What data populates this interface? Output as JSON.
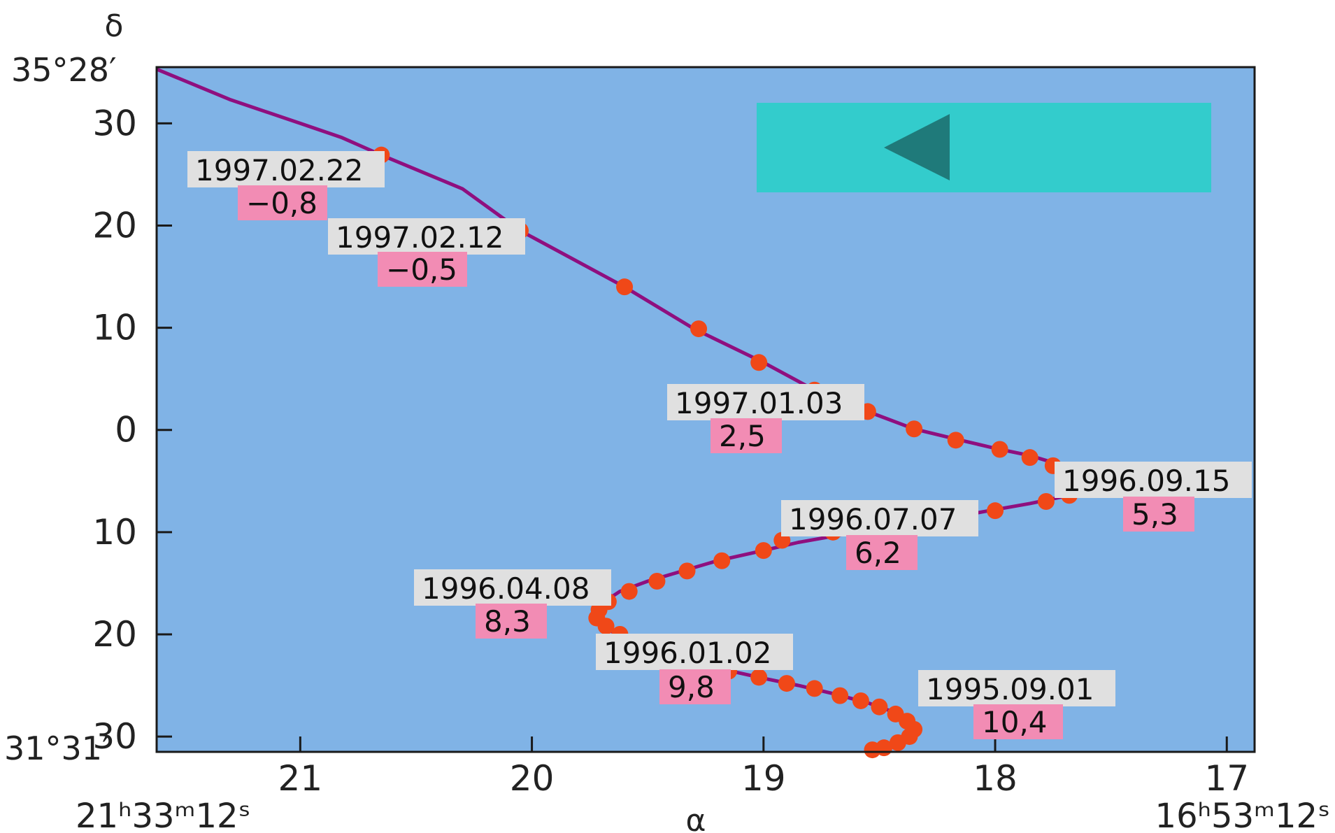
{
  "chart_data": {
    "type": "line",
    "xlabel": "α",
    "ylabel": "δ",
    "x_reversed": true,
    "xlim": [
      21.62,
      16.88
    ],
    "ylim": [
      -31.5,
      35.5
    ],
    "x_ticks": [
      {
        "value": 21,
        "label": "21"
      },
      {
        "value": 20,
        "label": "20"
      },
      {
        "value": 19,
        "label": "19"
      },
      {
        "value": 18,
        "label": "18"
      },
      {
        "value": 17,
        "label": "17"
      }
    ],
    "x_range_labels": {
      "left": "21ʰ33ᵐ12ˢ",
      "right": "16ʰ53ᵐ12ˢ"
    },
    "y_ticks": [
      {
        "value": 30,
        "label": "30"
      },
      {
        "value": 20,
        "label": "20"
      },
      {
        "value": 10,
        "label": "10"
      },
      {
        "value": 0,
        "label": "0"
      },
      {
        "value": -10,
        "label": "10"
      },
      {
        "value": -20,
        "label": "20"
      },
      {
        "value": -30,
        "label": "30"
      }
    ],
    "y_range_labels": {
      "top": "35°28′",
      "bottom": "31°31′"
    },
    "path": [
      [
        21.62,
        35.3
      ],
      [
        21.3,
        32.3
      ],
      [
        21.0,
        30.0
      ],
      [
        20.82,
        28.6
      ],
      [
        20.65,
        26.9
      ],
      [
        20.3,
        23.6
      ],
      [
        20.05,
        19.5
      ],
      [
        19.6,
        14.0
      ],
      [
        19.3,
        9.9
      ],
      [
        19.0,
        6.6
      ],
      [
        18.78,
        3.9
      ],
      [
        18.55,
        1.8
      ],
      [
        18.35,
        0.1
      ],
      [
        18.15,
        -1.0
      ],
      [
        18.0,
        -1.8
      ],
      [
        17.85,
        -2.5
      ],
      [
        17.72,
        -3.4
      ],
      [
        17.62,
        -4.1
      ],
      [
        17.55,
        -5.0
      ],
      [
        17.58,
        -5.8
      ],
      [
        17.7,
        -6.5
      ],
      [
        17.85,
        -7.2
      ],
      [
        18.05,
        -8.0
      ],
      [
        18.35,
        -9.2
      ],
      [
        18.6,
        -10.0
      ],
      [
        18.85,
        -11.0
      ],
      [
        19.0,
        -11.8
      ],
      [
        19.2,
        -12.8
      ],
      [
        19.35,
        -13.8
      ],
      [
        19.5,
        -14.8
      ],
      [
        19.62,
        -15.8
      ],
      [
        19.7,
        -17.0
      ],
      [
        19.72,
        -18.3
      ],
      [
        19.68,
        -19.3
      ],
      [
        19.62,
        -20.3
      ],
      [
        19.5,
        -21.5
      ],
      [
        19.35,
        -22.5
      ],
      [
        19.2,
        -23.3
      ],
      [
        19.0,
        -24.3
      ],
      [
        18.85,
        -25.0
      ],
      [
        18.7,
        -25.8
      ],
      [
        18.55,
        -26.7
      ],
      [
        18.45,
        -27.5
      ],
      [
        18.37,
        -28.5
      ],
      [
        18.33,
        -29.4
      ],
      [
        18.37,
        -30.3
      ],
      [
        18.45,
        -31.0
      ],
      [
        18.52,
        -31.3
      ]
    ],
    "points": [
      [
        20.65,
        26.9
      ],
      [
        20.05,
        19.5
      ],
      [
        19.6,
        14.0
      ],
      [
        19.28,
        9.9
      ],
      [
        19.02,
        6.6
      ],
      [
        18.78,
        3.9
      ],
      [
        18.55,
        1.8
      ],
      [
        18.35,
        0.1
      ],
      [
        18.17,
        -1.0
      ],
      [
        17.98,
        -1.9
      ],
      [
        17.85,
        -2.7
      ],
      [
        17.75,
        -3.5
      ],
      [
        17.65,
        -4.0
      ],
      [
        17.6,
        -4.8
      ],
      [
        17.56,
        -5.2
      ],
      [
        17.62,
        -5.6
      ],
      [
        17.68,
        -6.4
      ],
      [
        17.78,
        -7.0
      ],
      [
        18.0,
        -7.9
      ],
      [
        18.25,
        -8.6
      ],
      [
        18.48,
        -9.3
      ],
      [
        18.7,
        -10.0
      ],
      [
        18.92,
        -10.8
      ],
      [
        19.0,
        -11.8
      ],
      [
        19.18,
        -12.8
      ],
      [
        19.33,
        -13.8
      ],
      [
        19.46,
        -14.8
      ],
      [
        19.58,
        -15.8
      ],
      [
        19.67,
        -16.8
      ],
      [
        19.71,
        -17.6
      ],
      [
        19.72,
        -18.4
      ],
      [
        19.68,
        -19.2
      ],
      [
        19.62,
        -20.0
      ],
      [
        19.55,
        -20.8
      ],
      [
        19.47,
        -21.5
      ],
      [
        19.38,
        -22.2
      ],
      [
        19.28,
        -22.9
      ],
      [
        19.15,
        -23.6
      ],
      [
        19.02,
        -24.2
      ],
      [
        18.9,
        -24.8
      ],
      [
        18.78,
        -25.3
      ],
      [
        18.67,
        -26.0
      ],
      [
        18.58,
        -26.5
      ],
      [
        18.5,
        -27.1
      ],
      [
        18.43,
        -27.8
      ],
      [
        18.38,
        -28.5
      ],
      [
        18.35,
        -29.3
      ],
      [
        18.37,
        -30.0
      ],
      [
        18.42,
        -30.6
      ],
      [
        18.48,
        -31.1
      ],
      [
        18.53,
        -31.3
      ]
    ],
    "annotations": [
      {
        "date": "1997.02.22",
        "value": "−0,8"
      },
      {
        "date": "1997.02.12",
        "value": "−0,5"
      },
      {
        "date": "1997.01.03",
        "value": "2,5"
      },
      {
        "date": "1996.09.15",
        "value": "5,3"
      },
      {
        "date": "1996.07.07",
        "value": "6,2"
      },
      {
        "date": "1996.04.08",
        "value": "8,3"
      },
      {
        "date": "1996.01.02",
        "value": "9,8"
      },
      {
        "date": "1995.09.01",
        "value": "10,4"
      }
    ],
    "legend_box": {
      "arrow_direction": "left"
    },
    "colors": {
      "plot_bg": "#80b3e6",
      "line": "#8f0f7f",
      "points": "#f04818",
      "date_label_bg": "#e0e0e0",
      "value_label_bg": "#f28cb4",
      "legend_bg": "#33cccc",
      "legend_arrow": "#1f7a7a"
    }
  }
}
